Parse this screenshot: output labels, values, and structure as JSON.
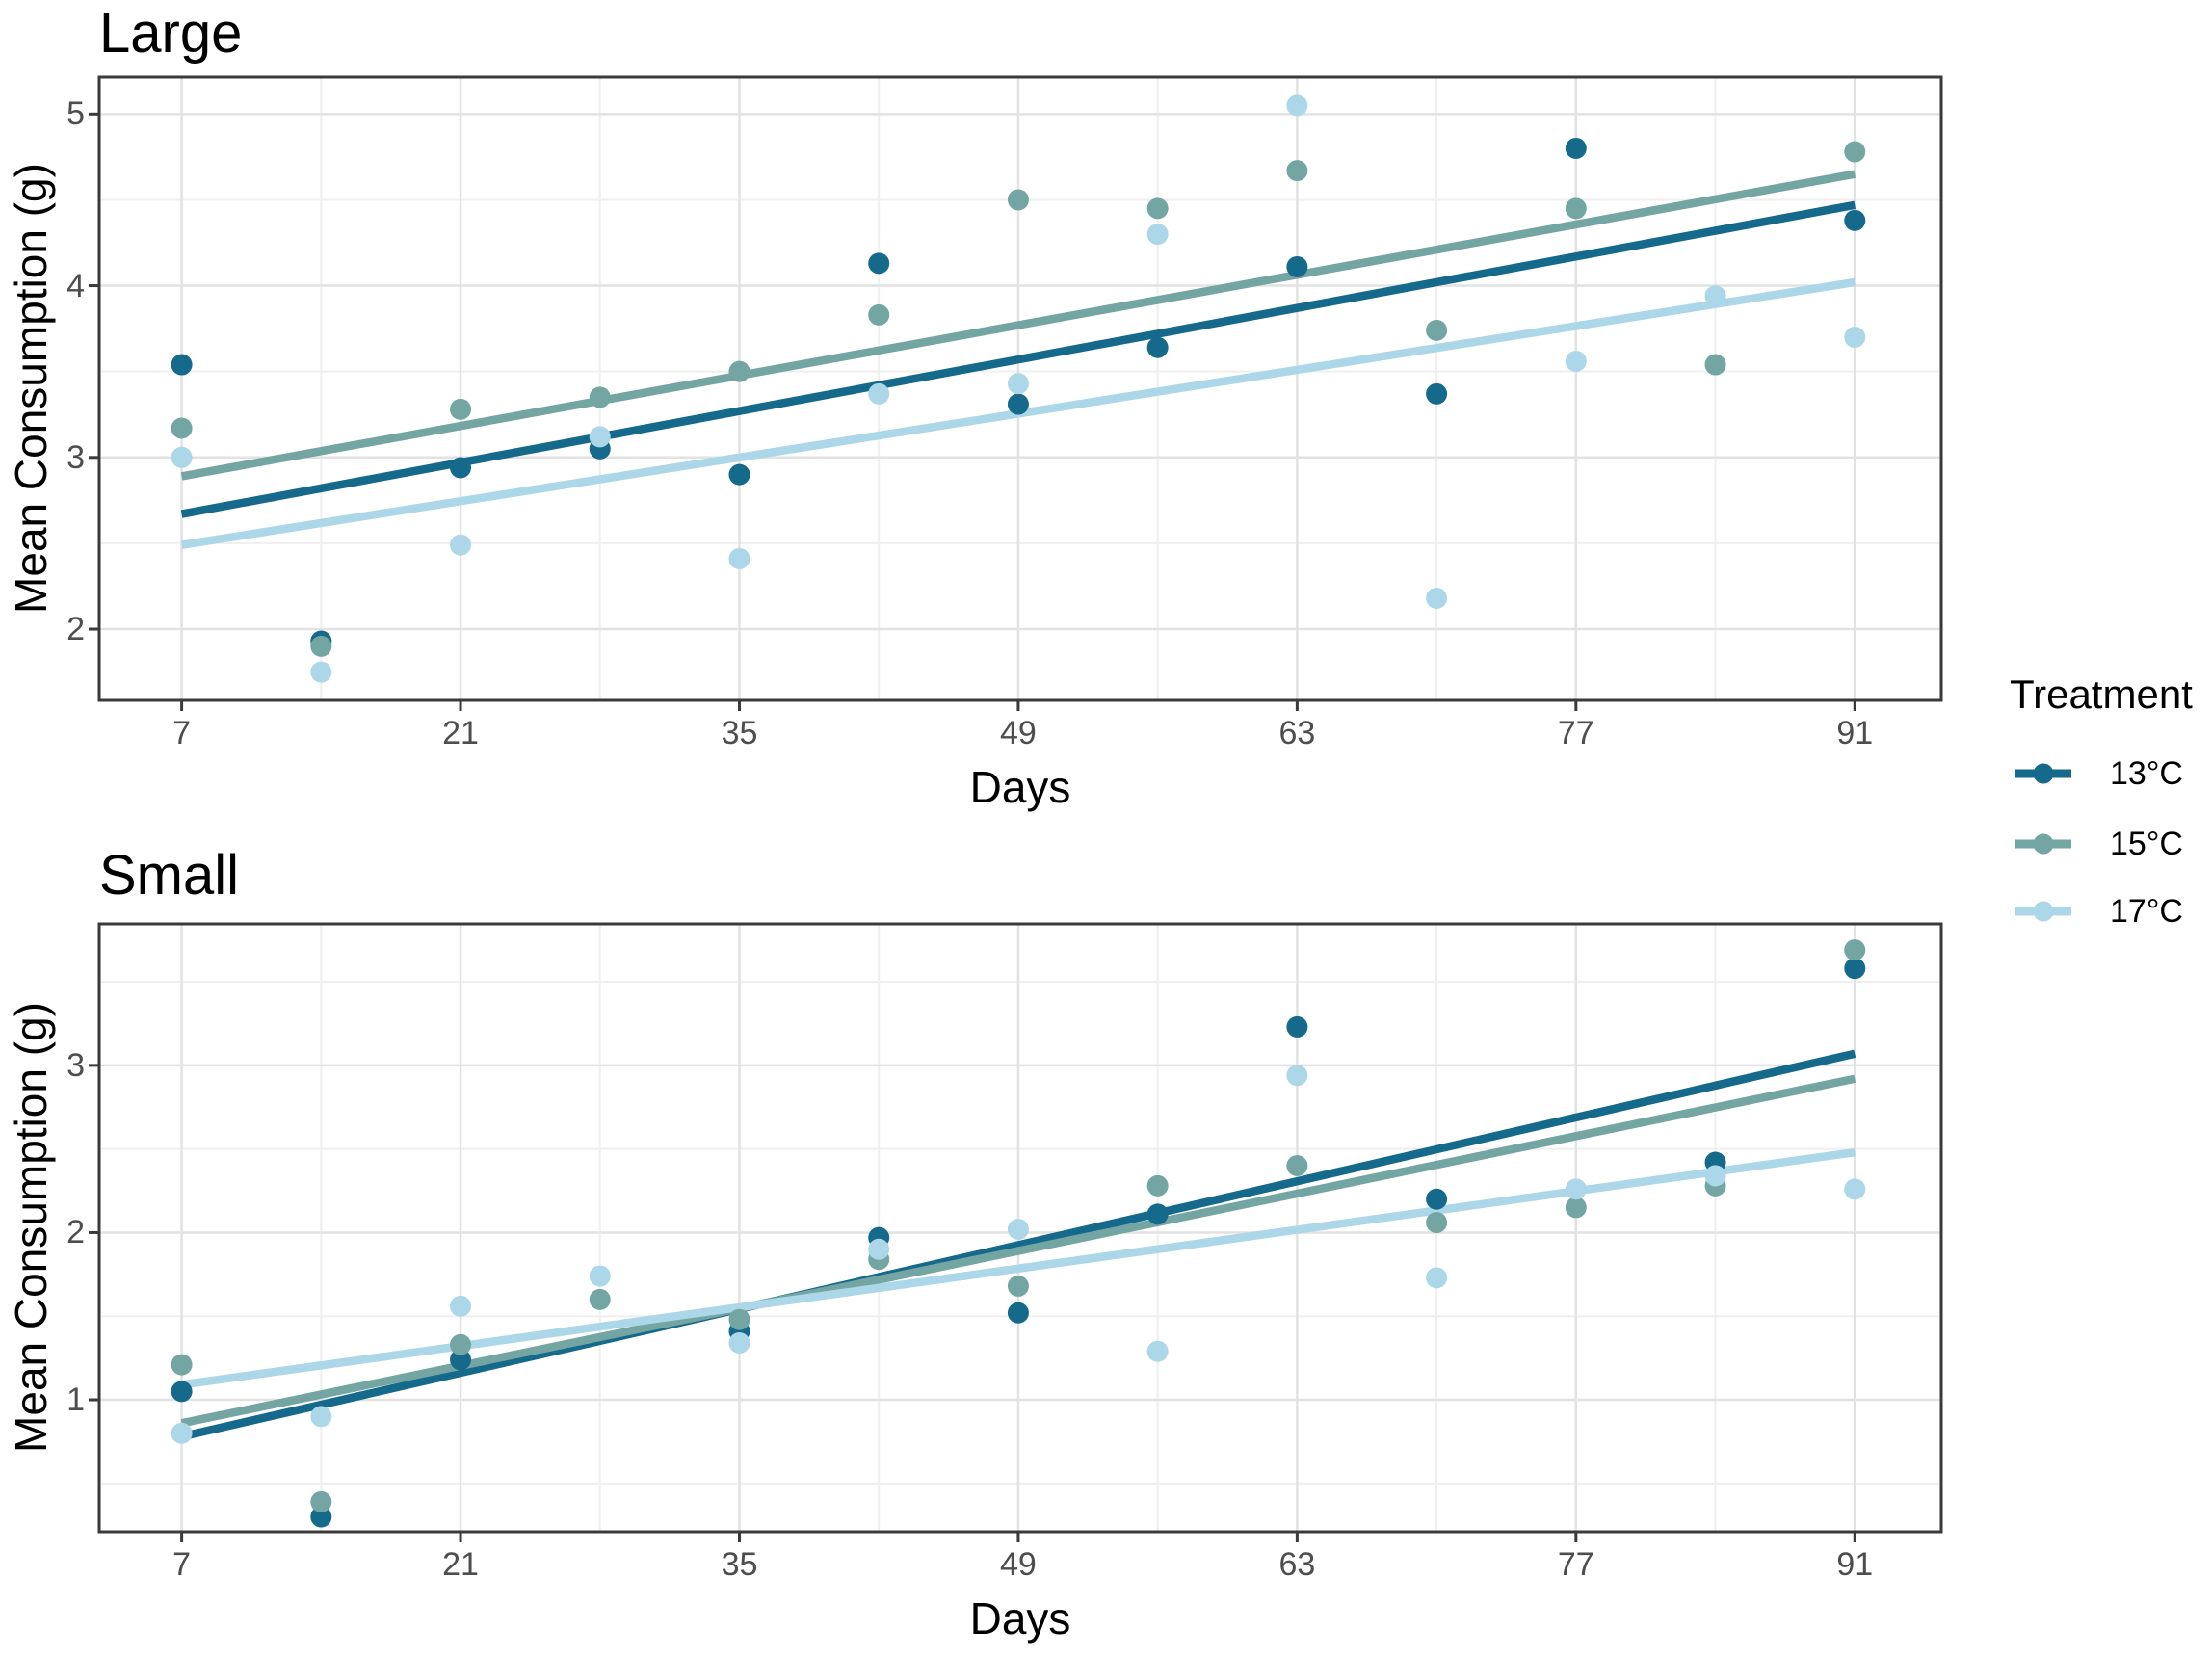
{
  "figure": {
    "background": "#FFFFFF"
  },
  "colors": {
    "treatment_13c": "#15698A",
    "treatment_15c": "#73A5A3",
    "treatment_17c": "#ACD7E8",
    "grid_major": "#E2E2E2",
    "grid_minor": "#EFEFEF",
    "panel_border": "#3A3A3A",
    "tick_mark": "#3A3A3A",
    "tick_label": "#4D4D4D",
    "title_text": "#000000"
  },
  "axes": {
    "x_label": "Days",
    "y_label": "Mean Consumption (g)",
    "x_breaks": [
      7,
      21,
      35,
      49,
      63,
      77,
      91
    ],
    "x_minor_breaks": [
      14,
      28,
      42,
      56,
      70,
      84
    ]
  },
  "legend": {
    "title": "Treatment",
    "position": "right",
    "items": [
      {
        "label": "13°C",
        "color": "#15698A"
      },
      {
        "label": "15°C",
        "color": "#73A5A3"
      },
      {
        "label": "17°C",
        "color": "#ACD7E8"
      }
    ]
  },
  "chart_data": [
    {
      "type": "scatter",
      "title": "Large",
      "xlabel": "Days",
      "ylabel": "Mean Consumption (g)",
      "x_range": [
        2.86,
        95.34
      ],
      "y_range": [
        1.585,
        5.215
      ],
      "x_breaks": [
        7,
        21,
        35,
        49,
        63,
        77,
        91
      ],
      "y_breaks": [
        2,
        3,
        4,
        5
      ],
      "y_minor_breaks": [
        2.5,
        3.5,
        4.5
      ],
      "grid": true,
      "series": [
        {
          "name": "13°C",
          "color": "#15698A",
          "points": [
            [
              7,
              3.54
            ],
            [
              14,
              1.93
            ],
            [
              21,
              2.94
            ],
            [
              28,
              3.05
            ],
            [
              35,
              2.9
            ],
            [
              42,
              4.13
            ],
            [
              49,
              3.31
            ],
            [
              56,
              3.64
            ],
            [
              63,
              4.11
            ],
            [
              70,
              3.37
            ],
            [
              77,
              4.8
            ],
            [
              91,
              4.38
            ]
          ],
          "trend_line": {
            "x": [
              7,
              91
            ],
            "y": [
              2.67,
              4.47
            ]
          }
        },
        {
          "name": "15°C",
          "color": "#73A5A3",
          "points": [
            [
              7,
              3.17
            ],
            [
              14,
              1.9
            ],
            [
              21,
              3.28
            ],
            [
              28,
              3.35
            ],
            [
              35,
              3.5
            ],
            [
              42,
              3.83
            ],
            [
              49,
              4.5
            ],
            [
              56,
              4.45
            ],
            [
              63,
              4.67
            ],
            [
              70,
              3.74
            ],
            [
              77,
              4.45
            ],
            [
              84,
              3.54
            ],
            [
              91,
              4.78
            ]
          ],
          "trend_line": {
            "x": [
              7,
              91
            ],
            "y": [
              2.89,
              4.65
            ]
          }
        },
        {
          "name": "17°C",
          "color": "#ACD7E8",
          "points": [
            [
              7,
              3.0
            ],
            [
              14,
              1.75
            ],
            [
              21,
              2.49
            ],
            [
              28,
              3.12
            ],
            [
              35,
              2.41
            ],
            [
              42,
              3.37
            ],
            [
              49,
              3.43
            ],
            [
              56,
              4.3
            ],
            [
              63,
              5.05
            ],
            [
              70,
              2.18
            ],
            [
              77,
              3.56
            ],
            [
              84,
              3.94
            ],
            [
              91,
              3.7
            ]
          ],
          "trend_line": {
            "x": [
              7,
              91
            ],
            "y": [
              2.49,
              4.02
            ]
          }
        }
      ]
    },
    {
      "type": "scatter",
      "title": "Small",
      "xlabel": "Days",
      "ylabel": "Mean Consumption (g)",
      "x_range": [
        2.86,
        95.34
      ],
      "y_range": [
        0.211,
        3.846
      ],
      "x_breaks": [
        7,
        21,
        35,
        49,
        63,
        77,
        91
      ],
      "y_breaks": [
        1,
        2,
        3
      ],
      "y_minor_breaks": [
        0.5,
        1.5,
        2.5,
        3.5
      ],
      "grid": true,
      "series": [
        {
          "name": "13°C",
          "color": "#15698A",
          "points": [
            [
              7,
              1.05
            ],
            [
              14,
              0.3
            ],
            [
              21,
              1.24
            ],
            [
              35,
              1.41
            ],
            [
              42,
              1.97
            ],
            [
              49,
              1.52
            ],
            [
              56,
              2.11
            ],
            [
              63,
              3.23
            ],
            [
              70,
              2.2
            ],
            [
              84,
              2.42
            ],
            [
              91,
              3.58
            ]
          ],
          "trend_line": {
            "x": [
              7,
              91
            ],
            "y": [
              0.78,
              3.07
            ]
          }
        },
        {
          "name": "15°C",
          "color": "#73A5A3",
          "points": [
            [
              7,
              1.21
            ],
            [
              14,
              0.39
            ],
            [
              21,
              1.33
            ],
            [
              28,
              1.6
            ],
            [
              35,
              1.48
            ],
            [
              42,
              1.84
            ],
            [
              49,
              1.68
            ],
            [
              56,
              2.28
            ],
            [
              63,
              2.4
            ],
            [
              70,
              2.06
            ],
            [
              77,
              2.15
            ],
            [
              84,
              2.28
            ],
            [
              91,
              3.69
            ]
          ],
          "trend_line": {
            "x": [
              7,
              91
            ],
            "y": [
              0.86,
              2.92
            ]
          }
        },
        {
          "name": "17°C",
          "color": "#ACD7E8",
          "points": [
            [
              7,
              0.8
            ],
            [
              14,
              0.9
            ],
            [
              21,
              1.56
            ],
            [
              28,
              1.74
            ],
            [
              35,
              1.34
            ],
            [
              42,
              1.9
            ],
            [
              49,
              2.02
            ],
            [
              56,
              1.29
            ],
            [
              63,
              2.94
            ],
            [
              70,
              1.73
            ],
            [
              77,
              2.26
            ],
            [
              84,
              2.34
            ],
            [
              91,
              2.26
            ]
          ],
          "trend_line": {
            "x": [
              7,
              91
            ],
            "y": [
              1.09,
              2.48
            ]
          }
        }
      ]
    }
  ]
}
